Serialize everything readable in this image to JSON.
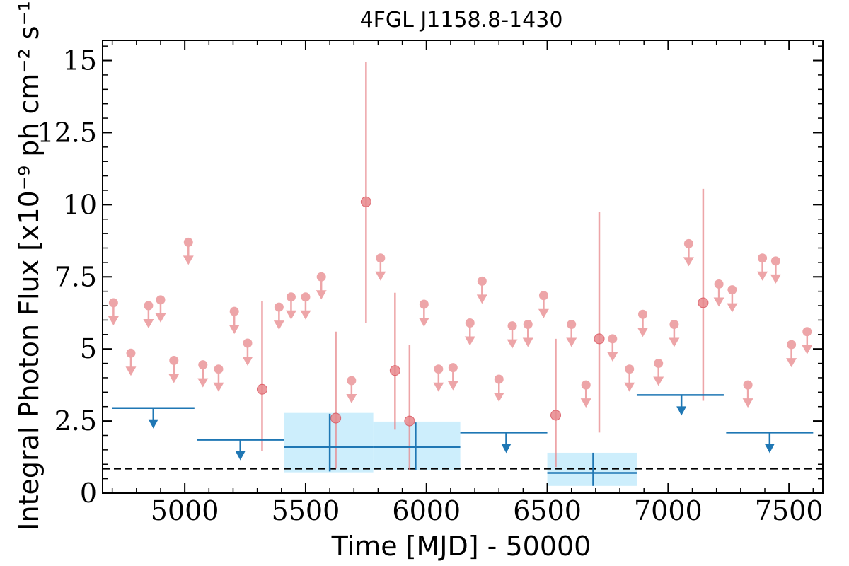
{
  "chart_data": {
    "type": "scatter",
    "title": "4FGL J1158.8-1430",
    "xlabel": "Time [MJD] - 50000",
    "ylabel": "Integral Photon Flux [x10⁻⁹ ph cm⁻² s⁻¹]",
    "xlim": [
      4660,
      7640
    ],
    "ylim": [
      0,
      15.7
    ],
    "x_ticks": [
      5000,
      5500,
      6000,
      6500,
      7000,
      7500
    ],
    "x_tick_labels": [
      "5000",
      "5500",
      "6000",
      "6500",
      "7000",
      "7500"
    ],
    "y_ticks": [
      0,
      2.5,
      5,
      7.5,
      10,
      12.5,
      15
    ],
    "y_tick_labels": [
      "0",
      "2.5",
      "5",
      "7.5",
      "10",
      "12.5",
      "15"
    ],
    "baseline_flux": 0.85,
    "colors": {
      "fine_bins": "#e8888c",
      "coarse_bins": "#1f77b4",
      "error_band": "#cdeefc",
      "baseline": "#000000"
    },
    "series": [
      {
        "kind": "upper_limits_fine",
        "points": [
          {
            "x": 4705,
            "y": 6.6
          },
          {
            "x": 4777,
            "y": 4.85
          },
          {
            "x": 4850,
            "y": 6.5
          },
          {
            "x": 4900,
            "y": 6.7
          },
          {
            "x": 4955,
            "y": 4.6
          },
          {
            "x": 5015,
            "y": 8.7
          },
          {
            "x": 5075,
            "y": 4.45
          },
          {
            "x": 5140,
            "y": 4.3
          },
          {
            "x": 5205,
            "y": 6.3
          },
          {
            "x": 5260,
            "y": 5.2
          },
          {
            "x": 5390,
            "y": 6.45
          },
          {
            "x": 5440,
            "y": 6.8
          },
          {
            "x": 5500,
            "y": 6.8
          },
          {
            "x": 5565,
            "y": 7.5
          },
          {
            "x": 5690,
            "y": 3.9
          },
          {
            "x": 5810,
            "y": 8.15
          },
          {
            "x": 5990,
            "y": 6.55
          },
          {
            "x": 6050,
            "y": 4.3
          },
          {
            "x": 6110,
            "y": 4.35
          },
          {
            "x": 6180,
            "y": 5.9
          },
          {
            "x": 6230,
            "y": 7.35
          },
          {
            "x": 6300,
            "y": 3.95
          },
          {
            "x": 6355,
            "y": 5.8
          },
          {
            "x": 6420,
            "y": 5.85
          },
          {
            "x": 6485,
            "y": 6.85
          },
          {
            "x": 6600,
            "y": 5.85
          },
          {
            "x": 6660,
            "y": 3.75
          },
          {
            "x": 6770,
            "y": 5.35
          },
          {
            "x": 6840,
            "y": 4.3
          },
          {
            "x": 6895,
            "y": 6.2
          },
          {
            "x": 6960,
            "y": 4.5
          },
          {
            "x": 7025,
            "y": 5.85
          },
          {
            "x": 7085,
            "y": 8.65
          },
          {
            "x": 7210,
            "y": 7.25
          },
          {
            "x": 7265,
            "y": 7.05
          },
          {
            "x": 7330,
            "y": 3.75
          },
          {
            "x": 7390,
            "y": 8.15
          },
          {
            "x": 7445,
            "y": 8.05
          },
          {
            "x": 7510,
            "y": 5.15
          },
          {
            "x": 7575,
            "y": 5.6
          }
        ]
      },
      {
        "kind": "detections_fine",
        "points": [
          {
            "x": 5320,
            "y": 3.6,
            "ylo": 1.45,
            "yhi": 6.65
          },
          {
            "x": 5625,
            "y": 2.6,
            "ylo": 0.85,
            "yhi": 5.6
          },
          {
            "x": 5750,
            "y": 10.1,
            "ylo": 5.9,
            "yhi": 14.95
          },
          {
            "x": 5870,
            "y": 4.25,
            "ylo": 2.2,
            "yhi": 6.95
          },
          {
            "x": 5930,
            "y": 2.5,
            "ylo": 0.8,
            "yhi": 5.15
          },
          {
            "x": 6535,
            "y": 2.7,
            "ylo": 0.9,
            "yhi": 5.35
          },
          {
            "x": 6715,
            "y": 5.35,
            "ylo": 2.1,
            "yhi": 9.75
          },
          {
            "x": 7145,
            "y": 6.6,
            "ylo": 3.2,
            "yhi": 10.55
          }
        ]
      },
      {
        "kind": "upper_limits_coarse",
        "points": [
          {
            "x0": 4700,
            "x1": 5040,
            "x": 4870,
            "y": 2.95
          },
          {
            "x0": 5050,
            "x1": 5410,
            "x": 5230,
            "y": 1.85
          },
          {
            "x0": 6140,
            "x1": 6500,
            "x": 6330,
            "y": 2.1
          },
          {
            "x0": 6870,
            "x1": 7230,
            "x": 7055,
            "y": 3.4
          },
          {
            "x0": 7240,
            "x1": 7600,
            "x": 7420,
            "y": 2.1
          }
        ]
      },
      {
        "kind": "detections_coarse",
        "points": [
          {
            "x0": 5410,
            "x1": 5780,
            "x": 5600,
            "y": 1.6,
            "ylo": 0.75,
            "yhi": 2.75,
            "band_lo": 0.72,
            "band_hi": 2.78
          },
          {
            "x0": 5780,
            "x1": 6140,
            "x": 5955,
            "y": 1.6,
            "ylo": 0.8,
            "yhi": 2.45,
            "band_lo": 0.8,
            "band_hi": 2.48
          },
          {
            "x0": 6500,
            "x1": 6870,
            "x": 6690,
            "y": 0.7,
            "ylo": 0.25,
            "yhi": 1.4,
            "band_lo": 0.25,
            "band_hi": 1.4
          }
        ]
      }
    ]
  }
}
